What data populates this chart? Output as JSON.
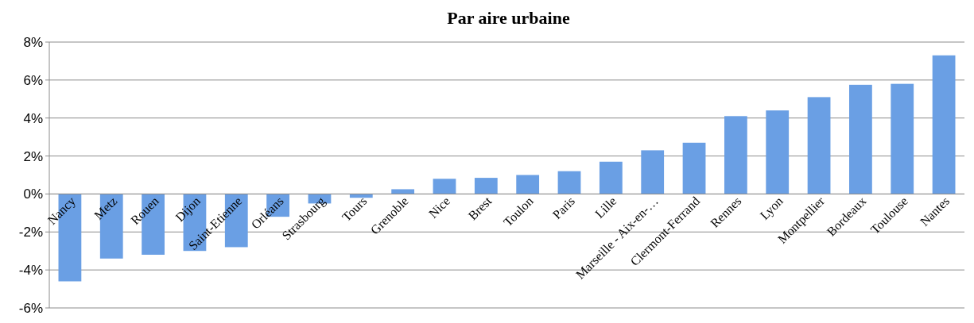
{
  "chart_data": {
    "type": "bar",
    "title": "Par aire urbaine",
    "categories": [
      "Nancy",
      "Metz",
      "Rouen",
      "Dijon",
      "Saint-Etienne",
      "Orléans",
      "Strasbourg",
      "Tours",
      "Grenoble",
      "Nice",
      "Brest",
      "Toulon",
      "Paris",
      "Lille",
      "Marseille - Aix-en-…",
      "Clermont-Ferrand",
      "Rennes",
      "Lyon",
      "Montpellier",
      "Bordeaux",
      "Toulouse",
      "Nantes"
    ],
    "values": [
      -4.6,
      -3.4,
      -3.2,
      -3.0,
      -2.8,
      -1.2,
      -0.5,
      -0.2,
      0.25,
      0.8,
      0.85,
      1.0,
      1.2,
      1.7,
      2.3,
      2.7,
      4.1,
      4.4,
      5.1,
      5.75,
      5.8,
      7.3
    ],
    "color": "#6a9fe4",
    "ylim": [
      -6,
      8
    ],
    "yticks": [
      {
        "value": -6,
        "label": "-6%"
      },
      {
        "value": -4,
        "label": "-4%"
      },
      {
        "value": -2,
        "label": "-2%"
      },
      {
        "value": 0,
        "label": "0%"
      },
      {
        "value": 2,
        "label": "2%"
      },
      {
        "value": 4,
        "label": "4%"
      },
      {
        "value": 6,
        "label": "6%"
      },
      {
        "value": 8,
        "label": "8%"
      }
    ],
    "grid": "y"
  }
}
